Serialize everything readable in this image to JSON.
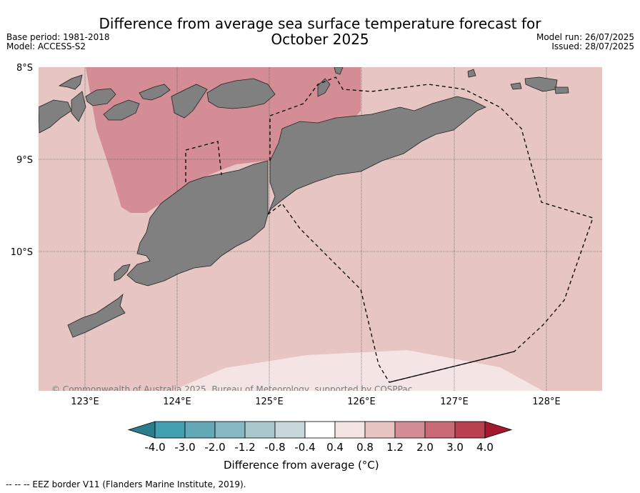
{
  "header": {
    "title_line1": "Difference from average sea surface temperature forecast for",
    "title_line2": "October 2025",
    "left_meta": [
      "Base period: 1981-2018",
      "Model: ACCESS-S2"
    ],
    "right_meta": [
      "Model run: 26/07/2025",
      "Issued: 28/07/2025"
    ]
  },
  "map": {
    "copyright": "© Commonwealth of Australia 2025, Bureau of Meteorology, supported by COSPPac",
    "lat_labels": [
      "8°S",
      "9°S",
      "10°S"
    ],
    "lon_labels": [
      "123°E",
      "124°E",
      "125°E",
      "126°E",
      "127°E",
      "128°E"
    ],
    "colors": {
      "land": "#808080",
      "anom_0_4_0_8": "#f4e5e4",
      "anom_0_8_1_2": "#e6c5c2",
      "anom_1_2_2_0": "#d48d95"
    }
  },
  "colorbar": {
    "ticks": [
      "-4.0",
      "-3.0",
      "-2.0",
      "-1.2",
      "-0.8",
      "-0.4",
      "0.4",
      "0.8",
      "1.2",
      "2.0",
      "3.0",
      "4.0"
    ],
    "colors": [
      "#41a0b0",
      "#64a8b7",
      "#86b8c3",
      "#a9c8cc",
      "#c8d8da",
      "#ffffff",
      "#f4e5e4",
      "#e6c5c2",
      "#d48d95",
      "#c96a76",
      "#b9414f"
    ],
    "under_color": "#2b7c8c",
    "over_color": "#a5192f",
    "label": "Difference from average (°C)"
  },
  "footnote": "--  --  -- EEZ border V11 (Flanders Marine Institute, 2019)."
}
